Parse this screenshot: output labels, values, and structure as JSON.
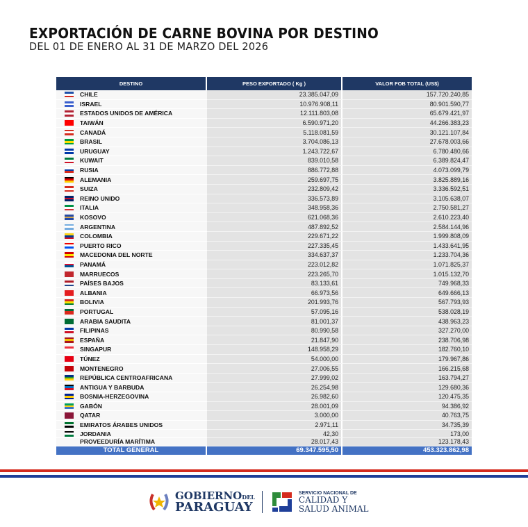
{
  "title": "EXPORTACIÓN DE CARNE BOVINA POR DESTINO",
  "subtitle": "DEL 01 DE ENERO AL 31 DE MARZO DEL 2026",
  "headers": [
    "DESTINO",
    "PESO EXPORTADO ( Kg )",
    "VALOR FOB TOTAL (US$)"
  ],
  "rows": [
    {
      "d": "CHILE",
      "p": "23.385.047,09",
      "v": "157.720.240,85",
      "f": [
        "#1f4fa8",
        "#fff",
        "#d52b1e"
      ]
    },
    {
      "d": "ISRAEL",
      "p": "10.976.908,11",
      "v": "80.901.590,77",
      "f": [
        "#3a5fcd",
        "#fff",
        "#3a5fcd"
      ]
    },
    {
      "d": "ESTADOS UNIDOS DE AMÉRICA",
      "p": "12.111.803,08",
      "v": "65.679.421,97",
      "f": [
        "#b22234",
        "#fff",
        "#b22234"
      ]
    },
    {
      "d": "TAIWÁN",
      "p": "6.590.971,20",
      "v": "44.266.383,23",
      "f": [
        "#fe0000",
        "#fe0000",
        "#fe0000"
      ]
    },
    {
      "d": "CANADÁ",
      "p": "5.118.081,59",
      "v": "30.121.107,84",
      "f": [
        "#d52b1e",
        "#fff",
        "#d52b1e"
      ]
    },
    {
      "d": "BRASIL",
      "p": "3.704.086,13",
      "v": "27.678.003,66",
      "f": [
        "#009c3b",
        "#ffdf00",
        "#009c3b"
      ]
    },
    {
      "d": "URUGUAY",
      "p": "1.243.722,67",
      "v": "6.780.480,66",
      "f": [
        "#0038a8",
        "#fff",
        "#0038a8"
      ]
    },
    {
      "d": "KUWAIT",
      "p": "839.010,58",
      "v": "6.389.824,47",
      "f": [
        "#007a3d",
        "#fff",
        "#ce1126"
      ]
    },
    {
      "d": "RUSIA",
      "p": "886.772,88",
      "v": "4.073.099,79",
      "f": [
        "#fff",
        "#0039a6",
        "#d52b1e"
      ]
    },
    {
      "d": "ALEMANIA",
      "p": "259.697,75",
      "v": "3.825.889,16",
      "f": [
        "#000",
        "#dd0000",
        "#ffce00"
      ]
    },
    {
      "d": "SUIZA",
      "p": "232.809,42",
      "v": "3.336.592,51",
      "f": [
        "#d52b1e",
        "#fff",
        "#d52b1e"
      ]
    },
    {
      "d": "REINO UNIDO",
      "p": "336.573,89",
      "v": "3.105.638,07",
      "f": [
        "#012169",
        "#c8102e",
        "#012169"
      ]
    },
    {
      "d": "ITALIA",
      "p": "348.958,36",
      "v": "2.750.581,27",
      "f": [
        "#009246",
        "#fff",
        "#ce2b37"
      ]
    },
    {
      "d": "KOSOVO",
      "p": "621.068,36",
      "v": "2.610.223,40",
      "f": [
        "#244aa5",
        "#d0a650",
        "#244aa5"
      ]
    },
    {
      "d": "ARGENTINA",
      "p": "487.892,52",
      "v": "2.584.144,96",
      "f": [
        "#74acdf",
        "#fff",
        "#74acdf"
      ]
    },
    {
      "d": "COLOMBIA",
      "p": "229.671,22",
      "v": "1.999.808,09",
      "f": [
        "#fcd116",
        "#003893",
        "#ce1126"
      ]
    },
    {
      "d": "PUERTO RICO",
      "p": "227.335,45",
      "v": "1.433.641,95",
      "f": [
        "#ed0000",
        "#fff",
        "#0050f0"
      ]
    },
    {
      "d": "MACEDONIA DEL NORTE",
      "p": "334.637,37",
      "v": "1.233.704,36",
      "f": [
        "#d20000",
        "#ffe600",
        "#d20000"
      ]
    },
    {
      "d": "PANAMÁ",
      "p": "223.012,82",
      "v": "1.071.825,37",
      "f": [
        "#fff",
        "#d21034",
        "#005293"
      ]
    },
    {
      "d": "MARRUECOS",
      "p": "223.265,70",
      "v": "1.015.132,70",
      "f": [
        "#c1272d",
        "#c1272d",
        "#c1272d"
      ]
    },
    {
      "d": "PAÍSES BAJOS",
      "p": "83.133,61",
      "v": "749.968,33",
      "f": [
        "#ae1c28",
        "#fff",
        "#21468b"
      ]
    },
    {
      "d": "ALBANIA",
      "p": "66.973,56",
      "v": "649.666,13",
      "f": [
        "#e41e20",
        "#e41e20",
        "#e41e20"
      ]
    },
    {
      "d": "BOLIVIA",
      "p": "201.993,76",
      "v": "567.793,93",
      "f": [
        "#d52b1e",
        "#f9e300",
        "#007934"
      ]
    },
    {
      "d": "PORTUGAL",
      "p": "57.095,16",
      "v": "538.028,19",
      "f": [
        "#046a38",
        "#da291c",
        "#da291c"
      ]
    },
    {
      "d": "ARABIA SAUDITA",
      "p": "81.001,37",
      "v": "438.963,23",
      "f": [
        "#006c35",
        "#006c35",
        "#006c35"
      ]
    },
    {
      "d": "FILIPINAS",
      "p": "80.990,58",
      "v": "327.270,00",
      "f": [
        "#0038a8",
        "#fff",
        "#ce1126"
      ]
    },
    {
      "d": "ESPAÑA",
      "p": "21.847,90",
      "v": "238.706,98",
      "f": [
        "#aa151b",
        "#f1bf00",
        "#aa151b"
      ]
    },
    {
      "d": "SINGAPUR",
      "p": "148.958,29",
      "v": "182.760,10",
      "f": [
        "#ef3340",
        "#fff",
        "#fff"
      ]
    },
    {
      "d": "TÚNEZ",
      "p": "54.000,00",
      "v": "179.967,86",
      "f": [
        "#e70013",
        "#e70013",
        "#e70013"
      ]
    },
    {
      "d": "MONTENEGRO",
      "p": "27.006,55",
      "v": "166.215,68",
      "f": [
        "#c40308",
        "#c40308",
        "#c40308"
      ]
    },
    {
      "d": "REPÚBLICA CENTROAFRICANA",
      "p": "27.999,02",
      "v": "163.794,27",
      "f": [
        "#003082",
        "#289728",
        "#ffce00"
      ]
    },
    {
      "d": "ANTIGUA Y BARBUDA",
      "p": "26.254,98",
      "v": "129.680,36",
      "f": [
        "#000",
        "#0072c6",
        "#ce1126"
      ]
    },
    {
      "d": "BOSNIA-HERZEGOVINA",
      "p": "26.982,60",
      "v": "120.475,35",
      "f": [
        "#002395",
        "#fecb00",
        "#002395"
      ]
    },
    {
      "d": "GABÓN",
      "p": "28.001,09",
      "v": "94.386,92",
      "f": [
        "#009e60",
        "#fcd116",
        "#3a75c4"
      ]
    },
    {
      "d": "QATAR",
      "p": "3.000,00",
      "v": "40.763,75",
      "f": [
        "#8a1538",
        "#8a1538",
        "#8a1538"
      ]
    },
    {
      "d": "EMIRATOS ÁRABES UNIDOS",
      "p": "2.971,11",
      "v": "34.735,39",
      "f": [
        "#00732f",
        "#fff",
        "#000"
      ]
    },
    {
      "d": "JORDANIA",
      "p": "42,30",
      "v": "173,00",
      "f": [
        "#000",
        "#fff",
        "#007a3d"
      ]
    },
    {
      "d": "PROVEEDURÍA MARÍTIMA",
      "p": "28.017,43",
      "v": "123.178,43",
      "f": null
    }
  ],
  "total": {
    "label": "TOTAL GENERAL",
    "peso": "69.347.595,50",
    "valor": "453.323.862,98"
  },
  "footer": {
    "gob_line1": "GOBIERNO",
    "gob_del": "DEL",
    "gob_line2": "PARAGUAY",
    "senacsa_line1": "SERVICIO NACIONAL DE",
    "senacsa_line2": "CALIDAD Y",
    "senacsa_line3": "SALUD ANIMAL"
  }
}
